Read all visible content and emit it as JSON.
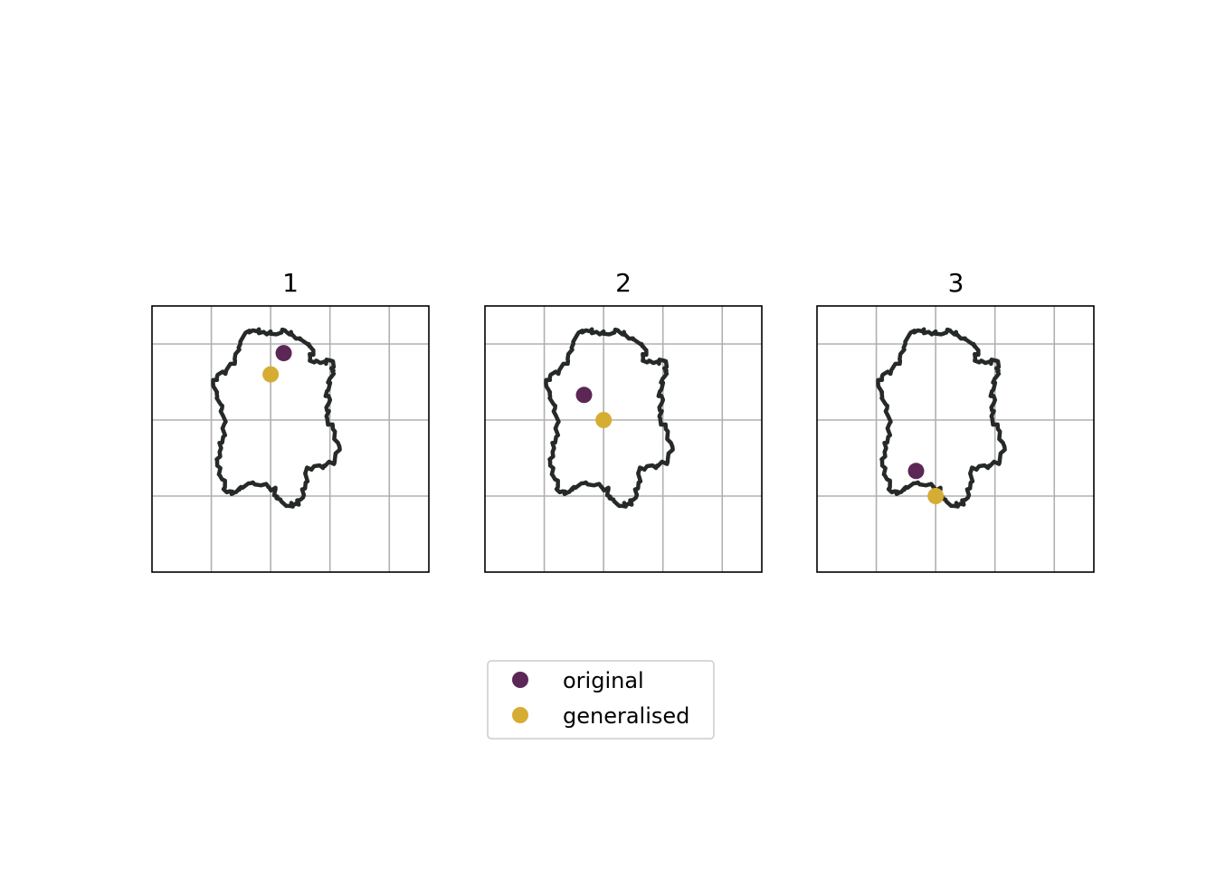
{
  "chart_data": [
    {
      "type": "scatter",
      "title": "1",
      "grid": true,
      "axis_ticks_visible": false,
      "series": [
        {
          "name": "original",
          "color": "#5c2756",
          "x": [
            0.22
          ],
          "y": [
            0.88
          ]
        },
        {
          "name": "generalised",
          "color": "#d6ad33",
          "x": [
            0.0
          ],
          "y": [
            0.6
          ]
        }
      ]
    },
    {
      "type": "scatter",
      "title": "2",
      "grid": true,
      "axis_ticks_visible": false,
      "series": [
        {
          "name": "original",
          "color": "#5c2756",
          "x": [
            -0.33
          ],
          "y": [
            0.33
          ]
        },
        {
          "name": "generalised",
          "color": "#d6ad33",
          "x": [
            0.0
          ],
          "y": [
            0.0
          ]
        }
      ]
    },
    {
      "type": "scatter",
      "title": "3",
      "grid": true,
      "axis_ticks_visible": false,
      "series": [
        {
          "name": "original",
          "color": "#5c2756",
          "x": [
            -0.33
          ],
          "y": [
            -0.67
          ]
        },
        {
          "name": "generalised",
          "color": "#d6ad33",
          "x": [
            0.0
          ],
          "y": [
            -1.0
          ]
        }
      ]
    }
  ],
  "legend": {
    "placement": "bottom-center",
    "entries": [
      {
        "label": "original",
        "color": "#5c2756"
      },
      {
        "label": "generalised",
        "color": "#d6ad33"
      }
    ]
  },
  "colors": {
    "original": "#5c2756",
    "generalised": "#d6ad33",
    "outline": "#262a26",
    "grid": "#b0b0b0"
  }
}
